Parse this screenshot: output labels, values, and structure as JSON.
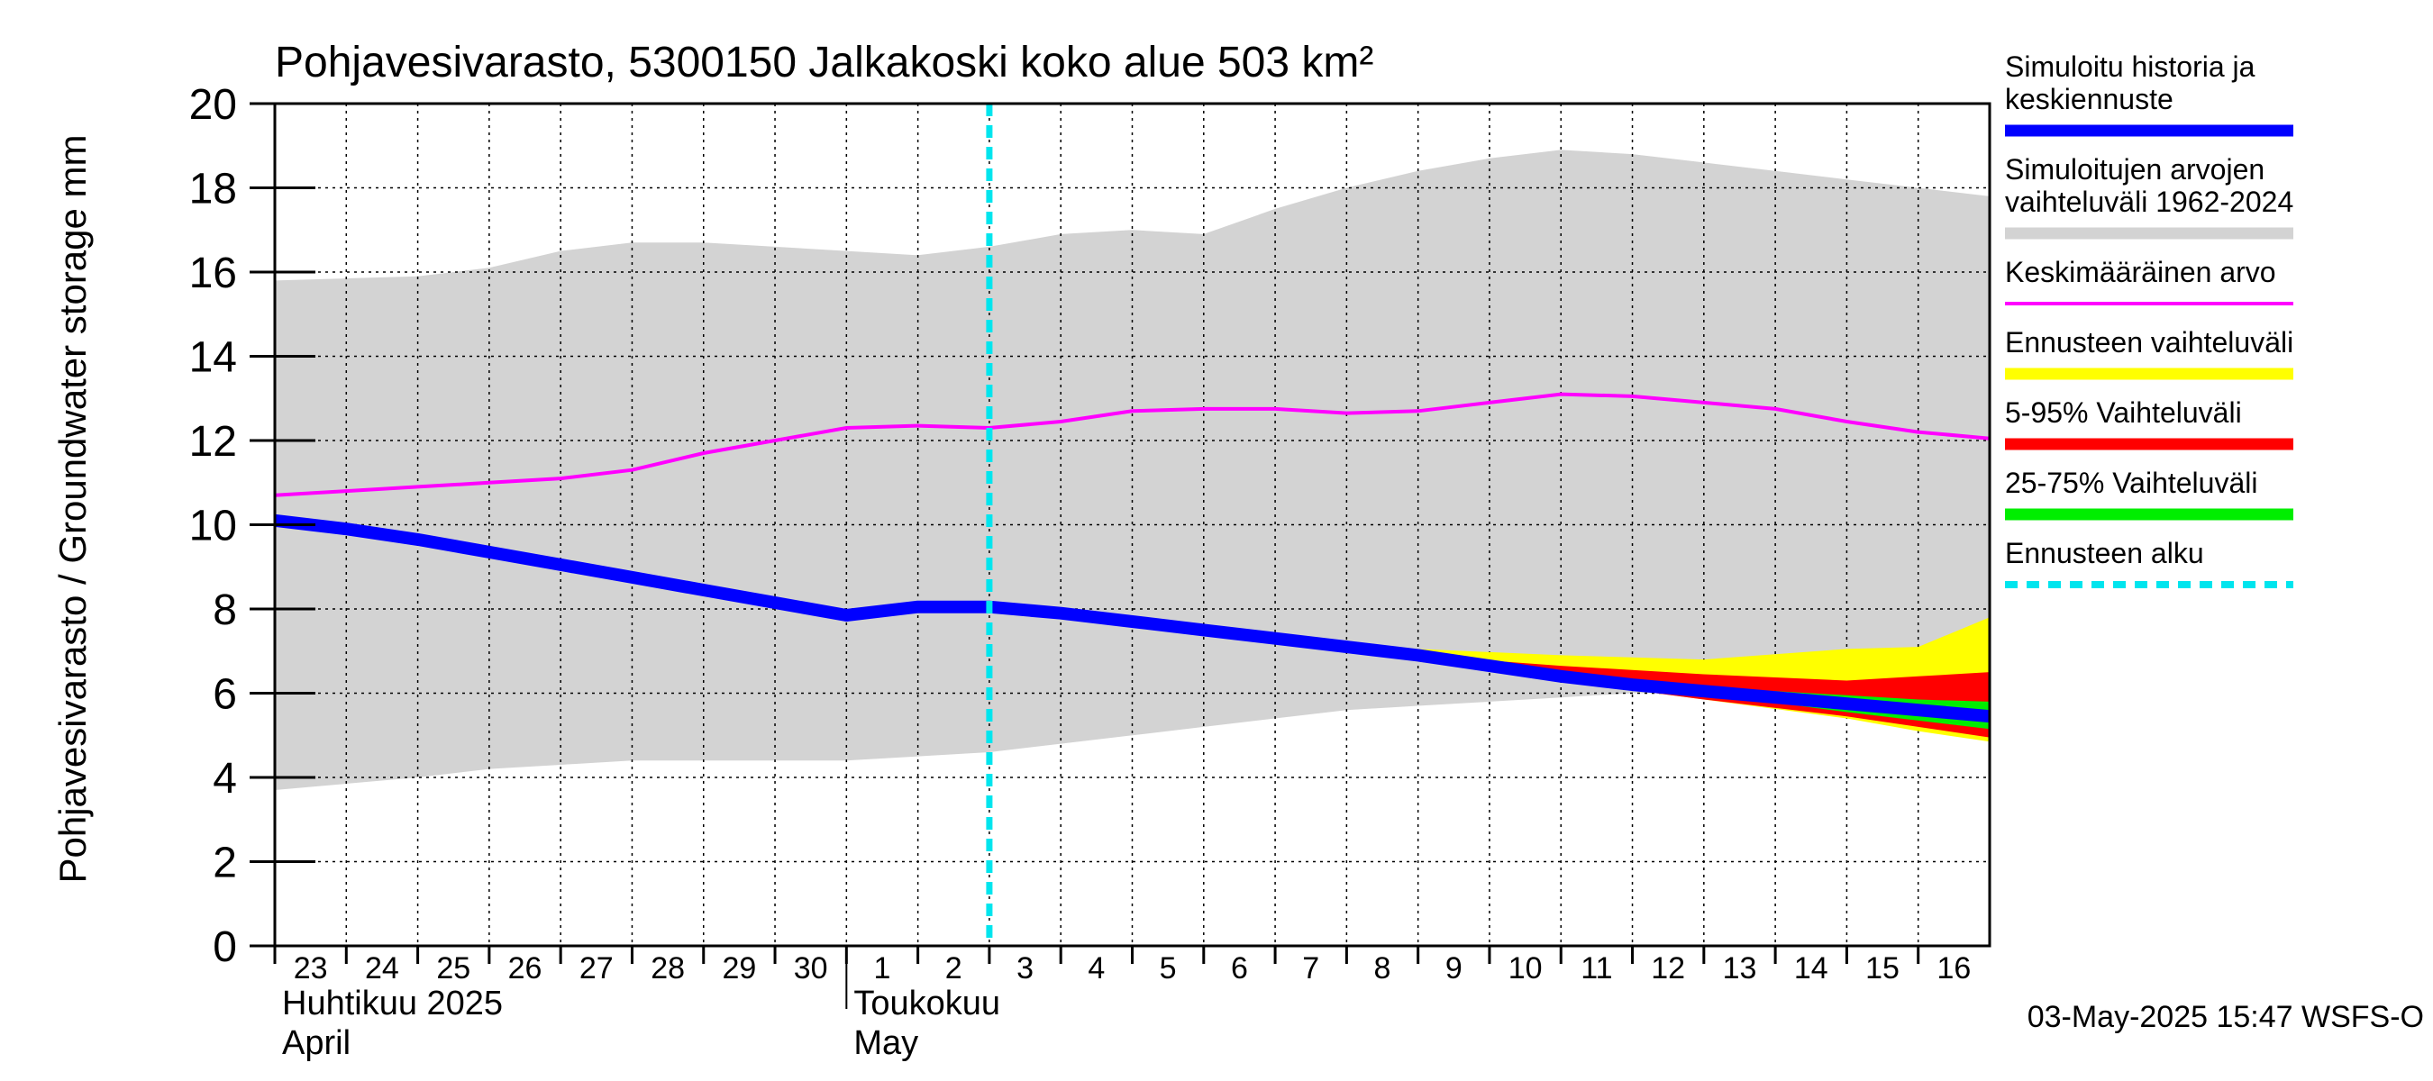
{
  "chart_data": {
    "type": "area",
    "title": "Pohjavesivarasto, 5300150 Jalkakoski koko alue 503 km²",
    "ylabel": "Pohjavesivarasto / Groundwater storage   mm",
    "ylim": [
      0,
      20
    ],
    "yticks": [
      0,
      2,
      4,
      6,
      8,
      10,
      12,
      14,
      16,
      18,
      20
    ],
    "grid": true,
    "x_day_labels": [
      "23",
      "24",
      "25",
      "26",
      "27",
      "28",
      "29",
      "30",
      "1",
      "2",
      "3",
      "4",
      "5",
      "6",
      "7",
      "8",
      "9",
      "10",
      "11",
      "12",
      "13",
      "14",
      "15",
      "16"
    ],
    "month_labels": [
      {
        "fi": "Huhtikuu  2025",
        "en": "April",
        "at_day": 0
      },
      {
        "fi": "Toukokuu",
        "en": "May",
        "at_day": 8
      }
    ],
    "x_range_days": [
      0,
      24
    ],
    "forecast_start_day": 10.0,
    "footer": "03-May-2025 15:47 WSFS-O",
    "legend": [
      {
        "label": "Simuloitu historia ja keskiennuste",
        "lines": [
          "Simuloitu historia ja",
          "keskiennuste"
        ],
        "color": "#0000ff",
        "style": "solid-thick"
      },
      {
        "label": "Simuloitujen arvojen vaihteluväli 1962-2024",
        "lines": [
          "Simuloitujen arvojen",
          "vaihteluväli 1962-2024"
        ],
        "color": "#d3d3d3",
        "style": "solid-thick"
      },
      {
        "label": "Keskimääräinen arvo",
        "lines": [
          "Keskimääräinen arvo"
        ],
        "color": "#ff00ff",
        "style": "solid"
      },
      {
        "label": "Ennusteen vaihteluväli",
        "lines": [
          "Ennusteen vaihteluväli"
        ],
        "color": "#ffff00",
        "style": "solid-thick"
      },
      {
        "label": "5-95% Vaihteluväli",
        "lines": [
          "5-95% Vaihteluväli"
        ],
        "color": "#ff0000",
        "style": "solid-thick"
      },
      {
        "label": "25-75% Vaihteluväli",
        "lines": [
          "25-75% Vaihteluväli"
        ],
        "color": "#00ee00",
        "style": "solid-thick"
      },
      {
        "label": "Ennusteen alku",
        "lines": [
          "Ennusteen alku"
        ],
        "color": "#00e5ee",
        "style": "dashed"
      }
    ],
    "series": {
      "range_1962_2024": {
        "name": "Simuloitujen arvojen vaihteluväli 1962-2024",
        "x": [
          0,
          2,
          3,
          4,
          5,
          6,
          7,
          8,
          9,
          10,
          11,
          12,
          13,
          14,
          15,
          16,
          17,
          18,
          19,
          20,
          21,
          22,
          23,
          24
        ],
        "upper": [
          15.8,
          15.9,
          16.1,
          16.5,
          16.7,
          16.7,
          16.6,
          16.5,
          16.4,
          16.6,
          16.9,
          17.0,
          16.9,
          17.5,
          18.0,
          18.4,
          18.7,
          18.9,
          18.8,
          18.6,
          18.4,
          18.2,
          18.0,
          17.8
        ],
        "lower": [
          3.7,
          4.0,
          4.2,
          4.3,
          4.4,
          4.4,
          4.4,
          4.4,
          4.5,
          4.6,
          4.8,
          5.0,
          5.2,
          5.4,
          5.6,
          5.7,
          5.8,
          5.9,
          6.0,
          6.0,
          6.0,
          6.0,
          6.0,
          6.0
        ]
      },
      "mean": {
        "name": "Keskimääräinen arvo",
        "x": [
          0,
          1,
          2,
          3,
          4,
          5,
          6,
          7,
          8,
          9,
          10,
          11,
          12,
          13,
          14,
          15,
          16,
          17,
          18,
          19,
          20,
          21,
          22,
          23,
          24
        ],
        "y": [
          10.7,
          10.8,
          10.9,
          11.0,
          11.1,
          11.3,
          11.7,
          12.0,
          12.3,
          12.35,
          12.3,
          12.45,
          12.7,
          12.75,
          12.75,
          12.65,
          12.7,
          12.9,
          13.1,
          13.05,
          12.9,
          12.75,
          12.45,
          12.2,
          12.05
        ]
      },
      "simulated": {
        "name": "Simuloitu historia ja keskiennuste",
        "x": [
          0,
          1,
          2,
          3,
          4,
          5,
          6,
          7,
          8,
          9,
          10,
          11,
          12,
          13,
          14,
          15,
          16,
          17,
          18,
          19,
          20,
          21,
          22,
          23,
          24
        ],
        "y": [
          10.1,
          9.9,
          9.65,
          9.35,
          9.05,
          8.75,
          8.45,
          8.15,
          7.85,
          8.05,
          8.05,
          7.9,
          7.7,
          7.5,
          7.3,
          7.1,
          6.9,
          6.65,
          6.4,
          6.2,
          6.05,
          5.9,
          5.75,
          5.6,
          5.45
        ]
      },
      "forecast_envelope": {
        "name": "Ennusteen vaihteluväli",
        "x": [
          10,
          12,
          14,
          16,
          18,
          20,
          22,
          23,
          24
        ],
        "upper": [
          8.05,
          7.75,
          7.4,
          7.05,
          6.9,
          6.8,
          7.05,
          7.1,
          7.8
        ],
        "lower": [
          8.05,
          7.65,
          7.2,
          6.75,
          6.3,
          5.85,
          5.4,
          5.1,
          4.85
        ]
      },
      "p5_95": {
        "name": "5-95% Vaihteluväli",
        "x": [
          10,
          12,
          14,
          16,
          18,
          20,
          22,
          23,
          24
        ],
        "upper": [
          8.05,
          7.75,
          7.35,
          6.9,
          6.65,
          6.45,
          6.3,
          6.4,
          6.5
        ],
        "lower": [
          8.05,
          7.65,
          7.2,
          6.8,
          6.3,
          5.85,
          5.45,
          5.2,
          4.95
        ]
      },
      "p25_75": {
        "name": "25-75% Vaihteluväli",
        "x": [
          10,
          12,
          14,
          16,
          18,
          20,
          22,
          23,
          24
        ],
        "upper": [
          8.05,
          7.72,
          7.32,
          6.88,
          6.45,
          6.15,
          5.95,
          5.85,
          5.8
        ],
        "lower": [
          8.05,
          7.68,
          7.25,
          6.82,
          6.35,
          6.0,
          5.55,
          5.35,
          5.15
        ]
      }
    }
  }
}
